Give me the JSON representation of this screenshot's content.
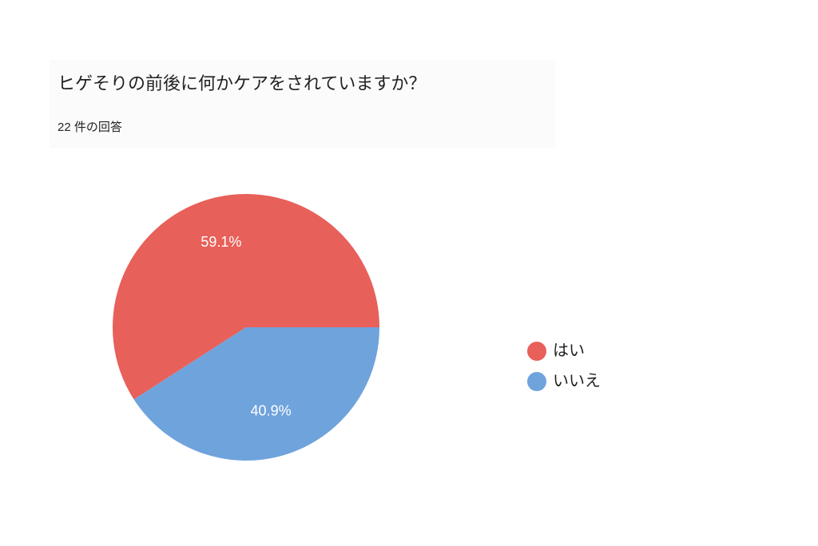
{
  "chart_data": {
    "type": "pie",
    "title": "ヒゲそりの前後に何かケアをされていますか？",
    "subtitle": "22 件の回答",
    "categories": [
      "はい",
      "いいえ"
    ],
    "values": [
      59.1,
      40.9
    ],
    "value_labels": [
      "59.1%",
      "40.9%"
    ],
    "colors": [
      "#e8605a",
      "#6fa3dc"
    ],
    "legend": "right"
  }
}
